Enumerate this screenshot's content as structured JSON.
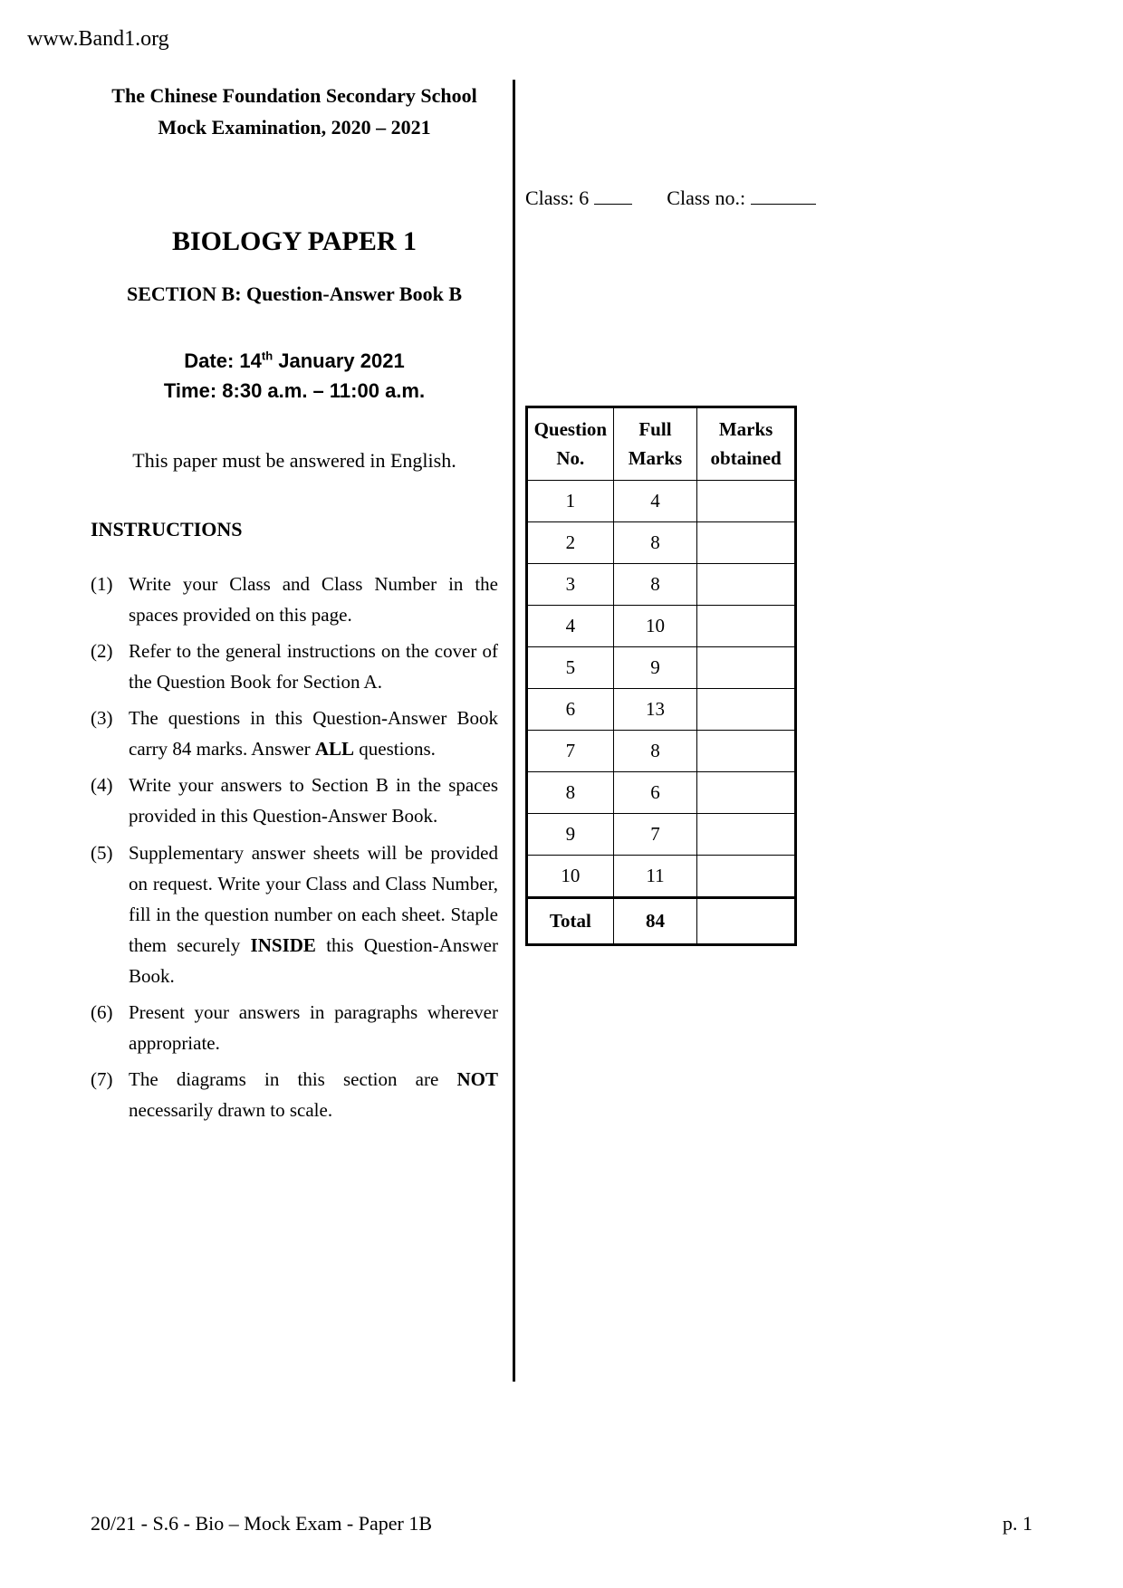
{
  "website_url": "www.Band1.org",
  "header": {
    "school_name": "The Chinese Foundation Secondary School",
    "exam_name": "Mock Examination, 2020 – 2021",
    "paper_title": "BIOLOGY PAPER 1",
    "section_subtitle": "SECTION B: Question-Answer Book B",
    "date_label": "Date: 14",
    "date_suffix": "th",
    "date_rest": " January 2021",
    "time_text": "Time: 8:30 a.m. – 11:00 a.m.",
    "english_note": "This paper must be answered in English."
  },
  "class_line": {
    "class_label": "Class: 6",
    "class_no_label": "Class no.:"
  },
  "instructions": {
    "heading": "INSTRUCTIONS",
    "items": [
      {
        "n": "(1)",
        "t": "Write your Class and Class Number in the spaces provided on this page."
      },
      {
        "n": "(2)",
        "t": "Refer to the general instructions on the cover of the Question Book for Section A."
      },
      {
        "n": "(3)",
        "t_before": "The questions in this Question-Answer Book carry 84 marks. Answer ",
        "bold": "ALL",
        "t_after": " questions."
      },
      {
        "n": "(4)",
        "t": "Write your answers to Section B in the spaces provided in this Question-Answer Book."
      },
      {
        "n": "(5)",
        "t_before": "Supplementary answer sheets will be provided on request. Write your Class and Class Number, fill in the question number on each sheet. Staple them securely ",
        "bold": "INSIDE",
        "t_after": " this Question-Answer Book."
      },
      {
        "n": "(6)",
        "t": "Present your answers in paragraphs wherever appropriate."
      },
      {
        "n": "(7)",
        "t_before": "The diagrams in this section are ",
        "bold": "NOT",
        "t_after": " necessarily drawn to scale."
      }
    ]
  },
  "marks_table": {
    "headers": {
      "q": "Question No.",
      "fm": "Full Marks",
      "mo": "Marks obtained"
    },
    "rows": [
      {
        "q": "1",
        "fm": "4"
      },
      {
        "q": "2",
        "fm": "8"
      },
      {
        "q": "3",
        "fm": "8"
      },
      {
        "q": "4",
        "fm": "10"
      },
      {
        "q": "5",
        "fm": "9"
      },
      {
        "q": "6",
        "fm": "13"
      },
      {
        "q": "7",
        "fm": "8"
      },
      {
        "q": "8",
        "fm": "6"
      },
      {
        "q": "9",
        "fm": "7"
      },
      {
        "q": "10",
        "fm": "11"
      }
    ],
    "total": {
      "label": "Total",
      "value": "84"
    }
  },
  "footer": {
    "left": "20/21 - S.6 - Bio – Mock Exam - Paper 1B",
    "right": "p. 1"
  }
}
